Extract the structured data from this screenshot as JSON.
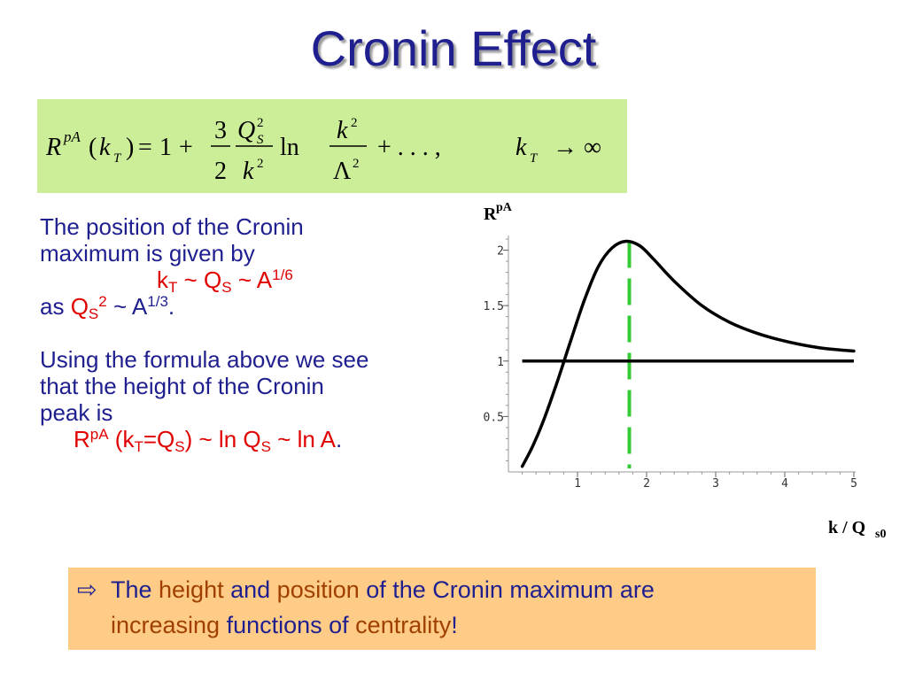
{
  "slide": {
    "title": "Cronin Effect"
  },
  "formula": {
    "R": "R",
    "pA": "pA",
    "open_paren": "(",
    "k": "k",
    "T": "T",
    "close_eq": ")",
    "equals": "=",
    "one": "1",
    "plus": "+",
    "three": "3",
    "two": "2",
    "Q": "Q",
    "S": "S",
    "sup2": "2",
    "ln": "ln",
    "Lambda": "Λ",
    "dots": "+ . . . ,",
    "kT_k": "k",
    "kT_T": "T",
    "limit": "→ ∞"
  },
  "text": {
    "line1": "The position of the Cronin",
    "line2": "maximum is given by",
    "rel_k": "k",
    "rel_T": "T",
    "rel_mid1": " ~ Q",
    "rel_S": "S",
    "rel_mid2": " ~ A",
    "rel_exp": "1/6",
    "as_word": "as ",
    "as_Q": "Q",
    "as_S": "S",
    "as_2": "2",
    "as_mid": " ~ A",
    "as_exp": "1/3",
    "as_dot": ".",
    "line5": "Using the formula above we see",
    "line6": "that the height of the Cronin",
    "line7": "peak is",
    "peak_R": "R",
    "peak_pA": "pA",
    "peak_open": " (k",
    "peak_T": "T",
    "peak_eqQ": "=Q",
    "peak_S1": "S",
    "peak_mid": ") ~ ln Q",
    "peak_S2": "S",
    "peak_end": " ~ ln A",
    "peak_dot": "."
  },
  "conclusion": {
    "arrow": "⇨",
    "w_the": "The ",
    "w_height": "height",
    "w_and": " and ",
    "w_position": "position",
    "w_rest1": " of the Cronin maximum are",
    "w_increasing": "increasing",
    "w_functions": " functions of ",
    "w_centrality": "centrality",
    "w_excl": "!"
  },
  "chart_data": {
    "type": "line",
    "ylabel_main": "R",
    "ylabel_sup": "pA",
    "xlabel_main": "k / Q",
    "xlabel_sub": "s0",
    "xlim": [
      0,
      5
    ],
    "ylim": [
      0,
      2.1
    ],
    "x_ticks": [
      1,
      2,
      3,
      4,
      5
    ],
    "x_tick_labels": [
      "1",
      "2",
      "3",
      "4",
      "5"
    ],
    "y_ticks": [
      0.5,
      1,
      1.5,
      2
    ],
    "y_tick_labels": [
      "0.5",
      "1",
      "1.5",
      "2"
    ],
    "colors": {
      "curve": "#000000",
      "baseline": "#000000",
      "peak_marker": "#33cc33"
    },
    "series": [
      {
        "x": [
          0.2,
          0.35,
          0.5,
          0.7,
          0.9,
          1.1,
          1.3,
          1.5,
          1.7,
          1.9,
          2.1,
          2.4,
          2.8,
          3.2,
          3.6,
          4.0,
          4.5,
          5.0
        ],
        "y": [
          0.05,
          0.23,
          0.45,
          0.8,
          1.18,
          1.55,
          1.85,
          2.02,
          2.08,
          2.04,
          1.92,
          1.72,
          1.5,
          1.35,
          1.25,
          1.18,
          1.12,
          1.09
        ]
      },
      {
        "x": [
          0.2,
          5.0
        ],
        "y": [
          1.0,
          1.0
        ]
      }
    ],
    "peak_marker_x": 1.75
  }
}
